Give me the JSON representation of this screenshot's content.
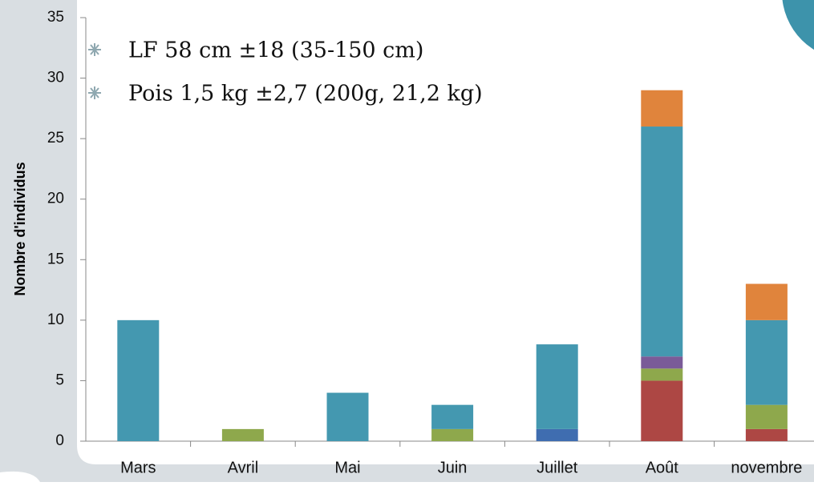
{
  "chart_data": {
    "type": "stacked_bar",
    "y_label": "Nombre d'individus",
    "annotations": [
      "LF 58 cm ±18 (35-150 cm)",
      "Pois 1,5 kg ±2,7 (200g, 21,2 kg)"
    ],
    "categories": [
      "Mars",
      "Avril",
      "Mai",
      "Juin",
      "Juillet",
      "Août",
      "novembre"
    ],
    "series": [
      {
        "color": "#ad4744",
        "values": [
          0,
          0,
          0,
          0,
          0,
          5,
          1
        ]
      },
      {
        "color": "#8ea84c",
        "values": [
          0,
          1,
          0,
          1,
          0,
          1,
          2
        ]
      },
      {
        "color": "#3f6db0",
        "values": [
          0,
          0,
          0,
          0,
          1,
          0,
          0
        ]
      },
      {
        "color": "#7a5b98",
        "values": [
          0,
          0,
          0,
          0,
          0,
          1,
          0
        ]
      },
      {
        "color": "#4498b0",
        "values": [
          10,
          0,
          4,
          2,
          7,
          19,
          7
        ]
      },
      {
        "color": "#e0843c",
        "values": [
          0,
          0,
          0,
          0,
          0,
          3,
          3
        ]
      }
    ],
    "ylim": [
      0,
      35
    ],
    "yticks": [
      0,
      5,
      10,
      15,
      20,
      25,
      30,
      35
    ]
  }
}
